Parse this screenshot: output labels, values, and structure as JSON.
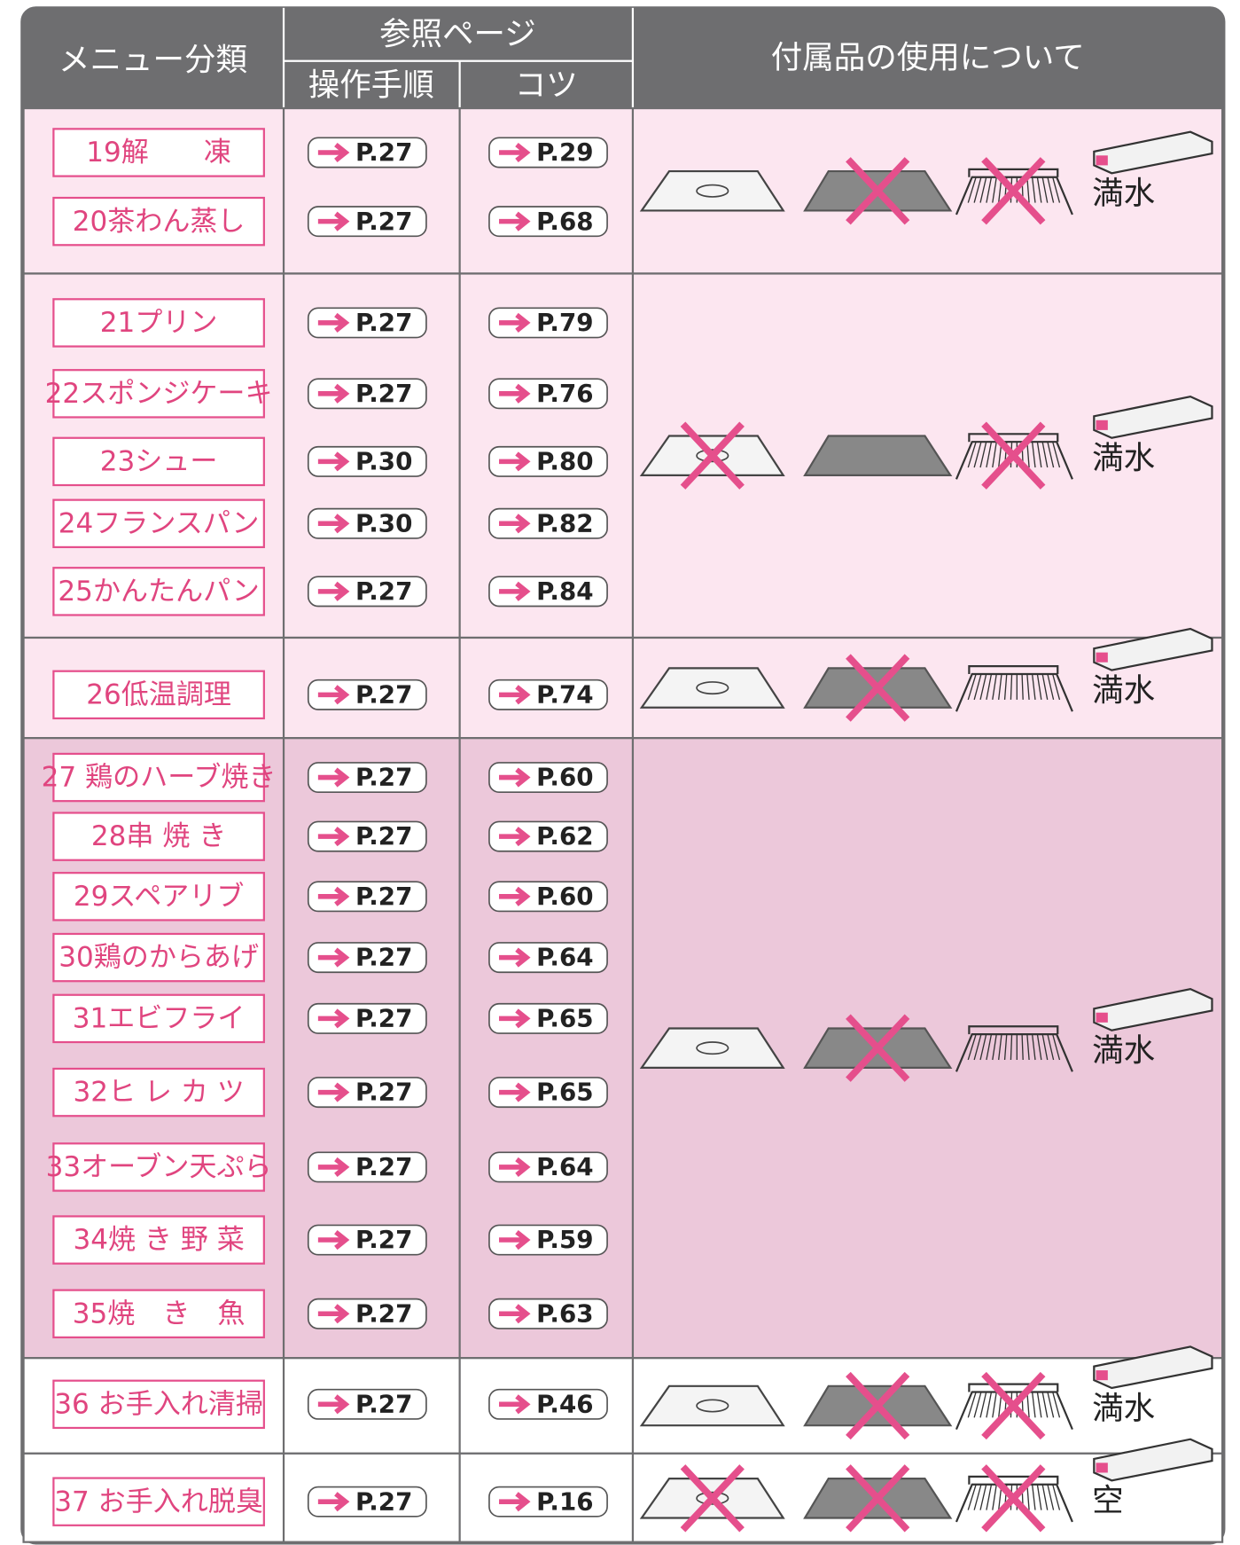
{
  "header": {
    "menu": "メニュー分類",
    "ref": "参照ページ",
    "steps": "操作手順",
    "tips": "コツ",
    "accessories": "付属品の使用について"
  },
  "groups": [
    {
      "rows": [
        {
          "menu": "19解　　凍",
          "steps": "P.27",
          "tips": "P.29"
        },
        {
          "menu": "20茶わん蒸し",
          "steps": "P.27",
          "tips": "P.68"
        }
      ],
      "crossed": [
        false,
        true,
        true
      ],
      "tank": "満水"
    },
    {
      "rows": [
        {
          "menu": "21プリン",
          "steps": "P.27",
          "tips": "P.79"
        },
        {
          "menu": "22スポンジケーキ",
          "steps": "P.27",
          "tips": "P.76"
        },
        {
          "menu": "23シュー",
          "steps": "P.30",
          "tips": "P.80"
        },
        {
          "menu": "24フランスパン",
          "steps": "P.30",
          "tips": "P.82"
        },
        {
          "menu": "25かんたんパン",
          "steps": "P.27",
          "tips": "P.84"
        }
      ],
      "crossed": [
        true,
        false,
        true
      ],
      "tank": "満水"
    },
    {
      "rows": [
        {
          "menu": "26低温調理",
          "steps": "P.27",
          "tips": "P.74"
        }
      ],
      "crossed": [
        false,
        true,
        false
      ],
      "tank": "満水"
    },
    {
      "rows": [
        {
          "menu": "27 鶏のハーブ焼き",
          "steps": "P.27",
          "tips": "P.60"
        },
        {
          "menu": "28串 焼 き",
          "steps": "P.27",
          "tips": "P.62"
        },
        {
          "menu": "29スペアリブ",
          "steps": "P.27",
          "tips": "P.60"
        },
        {
          "menu": "30鶏のからあげ",
          "steps": "P.27",
          "tips": "P.64"
        },
        {
          "menu": "31エビフライ",
          "steps": "P.27",
          "tips": "P.65"
        },
        {
          "menu": "32ヒ レ カ ツ",
          "steps": "P.27",
          "tips": "P.65"
        },
        {
          "menu": "33オーブン天ぷら",
          "steps": "P.27",
          "tips": "P.64"
        },
        {
          "menu": "34焼 き 野 菜",
          "steps": "P.27",
          "tips": "P.59"
        },
        {
          "menu": "35焼　き　魚",
          "steps": "P.27",
          "tips": "P.63"
        }
      ],
      "crossed": [
        false,
        true,
        false
      ],
      "tank": "満水"
    },
    {
      "rows": [
        {
          "menu": "36 お手入れ清掃",
          "steps": "P.27",
          "tips": "P.46"
        }
      ],
      "crossed": [
        false,
        true,
        true
      ],
      "tank": "満水"
    },
    {
      "rows": [
        {
          "menu": "37 お手入れ脱臭",
          "steps": "P.27",
          "tips": "P.16"
        }
      ],
      "crossed": [
        true,
        true,
        true
      ],
      "tank": "空"
    }
  ]
}
